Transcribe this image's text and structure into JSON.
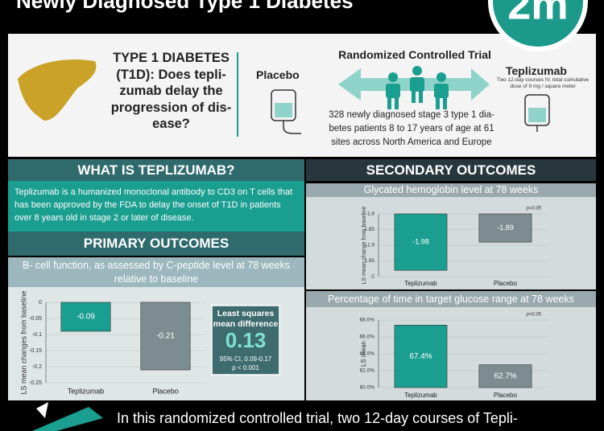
{
  "header": {
    "title": "Newly Diagnosed Type 1 Diabetes",
    "logo": "2m"
  },
  "question": {
    "lines": [
      "TYPE 1 DIABETES",
      "(T1D): Does tepli-",
      "zumab delay the",
      "progression of dis-",
      "ease?"
    ]
  },
  "placebo": {
    "label": "Placebo"
  },
  "trial": {
    "title": "Randomized Controlled Trial",
    "population_lines": [
      "328 newly diagnosed stage 3  type 1 dia-",
      "betes patients 8 to 17 years of age at 61",
      "sites across North America and Europe"
    ]
  },
  "teplizumab": {
    "label": "Teplizumab",
    "dosing_lines": [
      "Two 12-day courses IV, total cumulative",
      "dose of 9 mg / square meter"
    ]
  },
  "what_is": {
    "title": "WHAT IS TEPLIZUMAB?",
    "text": "Teplizumab is a humanized monoclonal antibody to CD3 on T cells that has been approved by the FDA to delay the onset of T1D in patients over 8 years old in stage 2 or later of disease."
  },
  "primary": {
    "title": "PRIMARY OUTCOMES",
    "chart": {
      "type": "bar",
      "title": "B- cell function, as assessed by C-peptide level at 78 weeks relative to baseline",
      "ylabel": "LS mean changes from baseline",
      "categories": [
        "Teplizumab",
        "Placebo"
      ],
      "values": [
        -0.09,
        -0.21
      ],
      "colors": [
        "#1a9e8f",
        "#7d8c90"
      ],
      "ylim": [
        -0.25,
        0
      ],
      "yticks": [
        0,
        -0.05,
        -0.1,
        -0.15,
        -0.2,
        -0.25
      ],
      "grid": true
    },
    "summary": {
      "title_lines": [
        "Least squares",
        "mean difference"
      ],
      "value": "0.13",
      "ci": "95% CI, 0.09-0.17",
      "p": "p < 0.001"
    }
  },
  "secondary": {
    "title": "SECONDARY OUTCOMES",
    "charts": [
      {
        "type": "bar",
        "title": "Glycated hemoglobin level at 78 weeks",
        "ylabel": "LS mean change from baseline",
        "note": "p=0.05",
        "categories": [
          "Teplizumab",
          "Placebo"
        ],
        "values": [
          -1.98,
          -1.89
        ],
        "colors": [
          "#1a9e8f",
          "#7d8c90"
        ],
        "ylim": [
          -2,
          -1.8
        ],
        "yticks": [
          -1.8,
          -1.85,
          -1.9,
          -1.95,
          -2
        ],
        "grid": true
      },
      {
        "type": "bar",
        "title": "Percentage of time in target glucose range at 78 weeks",
        "ylabel": "LS mean",
        "note": "p>0.05",
        "categories": [
          "Teplizumab",
          "Placebo"
        ],
        "values": [
          67.4,
          62.7
        ],
        "value_labels": [
          "67.4%",
          "62.7%"
        ],
        "colors": [
          "#1a9e8f",
          "#7d8c90"
        ],
        "ylim": [
          60,
          68
        ],
        "yticks": [
          {
            "value": 60,
            "label": "60.0%"
          },
          {
            "value": 62,
            "label": "62.0%"
          },
          {
            "value": 64,
            "label": "64.0%"
          },
          {
            "value": 66,
            "label": "66.0%"
          },
          {
            "value": 68,
            "label": "68.0%"
          }
        ],
        "grid": true
      }
    ]
  },
  "footer": {
    "text": "In this randomized controlled trial, two 12-day courses of Tepli-"
  }
}
